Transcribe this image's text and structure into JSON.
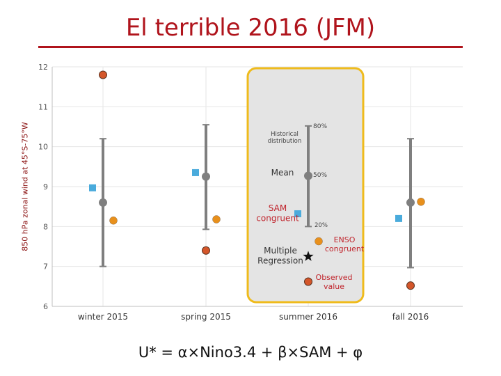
{
  "title": "El terrible 2016 (JFM)",
  "formula": "U* = α×Nino3.4 + β×SAM + φ",
  "colors": {
    "title": "#b0141c",
    "distribution": "#7f7f7f",
    "sam_marker": "#4aabdc",
    "enso_marker": "#e8901c",
    "regression_marker": "#d4562a",
    "highlight_border": "#efbb1c",
    "highlight_fill": "#e4e4e4",
    "grid": "#e6e6e6"
  },
  "chart_data": {
    "type": "scatter",
    "ylabel": "850 hPa zonal wind at 45°S-75°W",
    "ylim": [
      6,
      12
    ],
    "yticks": [
      "6",
      "7",
      "8",
      "9",
      "10",
      "11",
      "12"
    ],
    "categories": [
      "winter 2015",
      "spring 2015",
      "summer 2016",
      "fall 2016"
    ],
    "highlighted_category": "summer 2016",
    "series": [
      {
        "key": "distribution",
        "mean": [
          8.6,
          9.25,
          9.27,
          8.6
        ],
        "p20": [
          7.0,
          7.93,
          8.0,
          6.97
        ],
        "p80": [
          10.2,
          10.55,
          10.52,
          10.2
        ]
      },
      {
        "key": "sam",
        "values": [
          8.97,
          9.35,
          8.32,
          8.2
        ]
      },
      {
        "key": "enso",
        "values": [
          8.15,
          8.18,
          7.63,
          8.62
        ]
      },
      {
        "key": "observed",
        "values": [
          11.8,
          7.4,
          6.62,
          6.52
        ]
      },
      {
        "key": "regression",
        "values": [
          null,
          null,
          7.25,
          null
        ]
      }
    ],
    "annotations": {
      "historical": "Historical\ndistribution",
      "mean": "Mean",
      "sam": "SAM\ncongruent",
      "multiple": "Multiple\nRegression",
      "enso": "ENSO\ncongruent",
      "observed": "Observed\nvalue",
      "p80": "80%",
      "p50": "50%",
      "p20": "20%"
    }
  }
}
